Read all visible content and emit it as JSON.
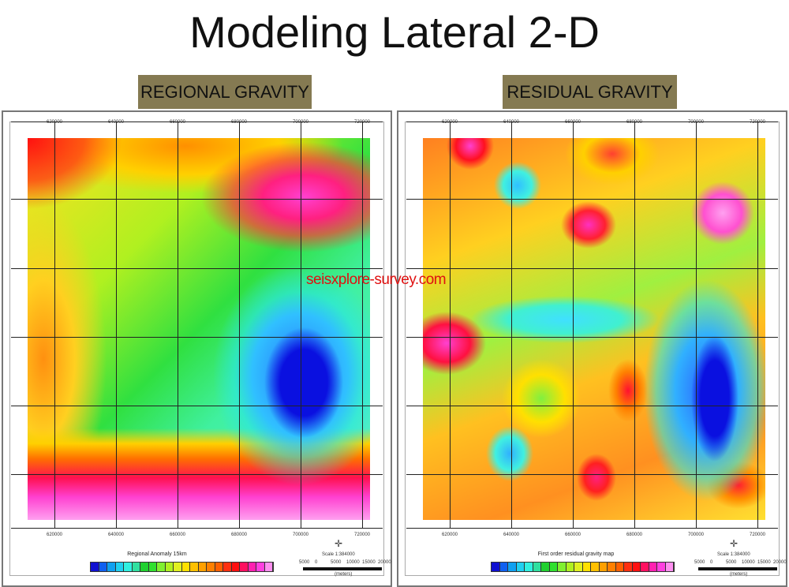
{
  "title": "Modeling Lateral 2-D",
  "panels": [
    {
      "label": "REGIONAL GRAVITY",
      "legend_title": "Regional Anomaly 15km",
      "x_ticks": [
        "620000",
        "640000",
        "660000",
        "680000",
        "700000",
        "720000"
      ],
      "scale": "Scale 1:384000",
      "scale_ticks": [
        "5000",
        "0",
        "5000",
        "10000",
        "15000",
        "20000"
      ],
      "units": "(meters)"
    },
    {
      "label": "RESIDUAL GRAVITY",
      "legend_title": "First order residual gravity map",
      "x_ticks": [
        "620000",
        "640000",
        "660000",
        "680000",
        "700000",
        "720000"
      ],
      "scale": "Scale 1:384000",
      "scale_ticks": [
        "5000",
        "0",
        "5000",
        "10000",
        "15000",
        "20000"
      ],
      "units": "(meters)"
    }
  ],
  "watermark": "seisxplore-survey.com",
  "colors": {
    "label_bg": "#857a52",
    "watermark": "#e01010"
  },
  "legend_colors": [
    "#1010d0",
    "#1060f0",
    "#10a0f0",
    "#20d0f0",
    "#30f0e0",
    "#30e0a0",
    "#20d030",
    "#30e030",
    "#80f030",
    "#b0f020",
    "#e0f020",
    "#ffe000",
    "#ffc000",
    "#ffa000",
    "#ff8000",
    "#ff6000",
    "#ff3010",
    "#ff1010",
    "#ff1060",
    "#ff20b0",
    "#ff40e0",
    "#ff90f0"
  ]
}
